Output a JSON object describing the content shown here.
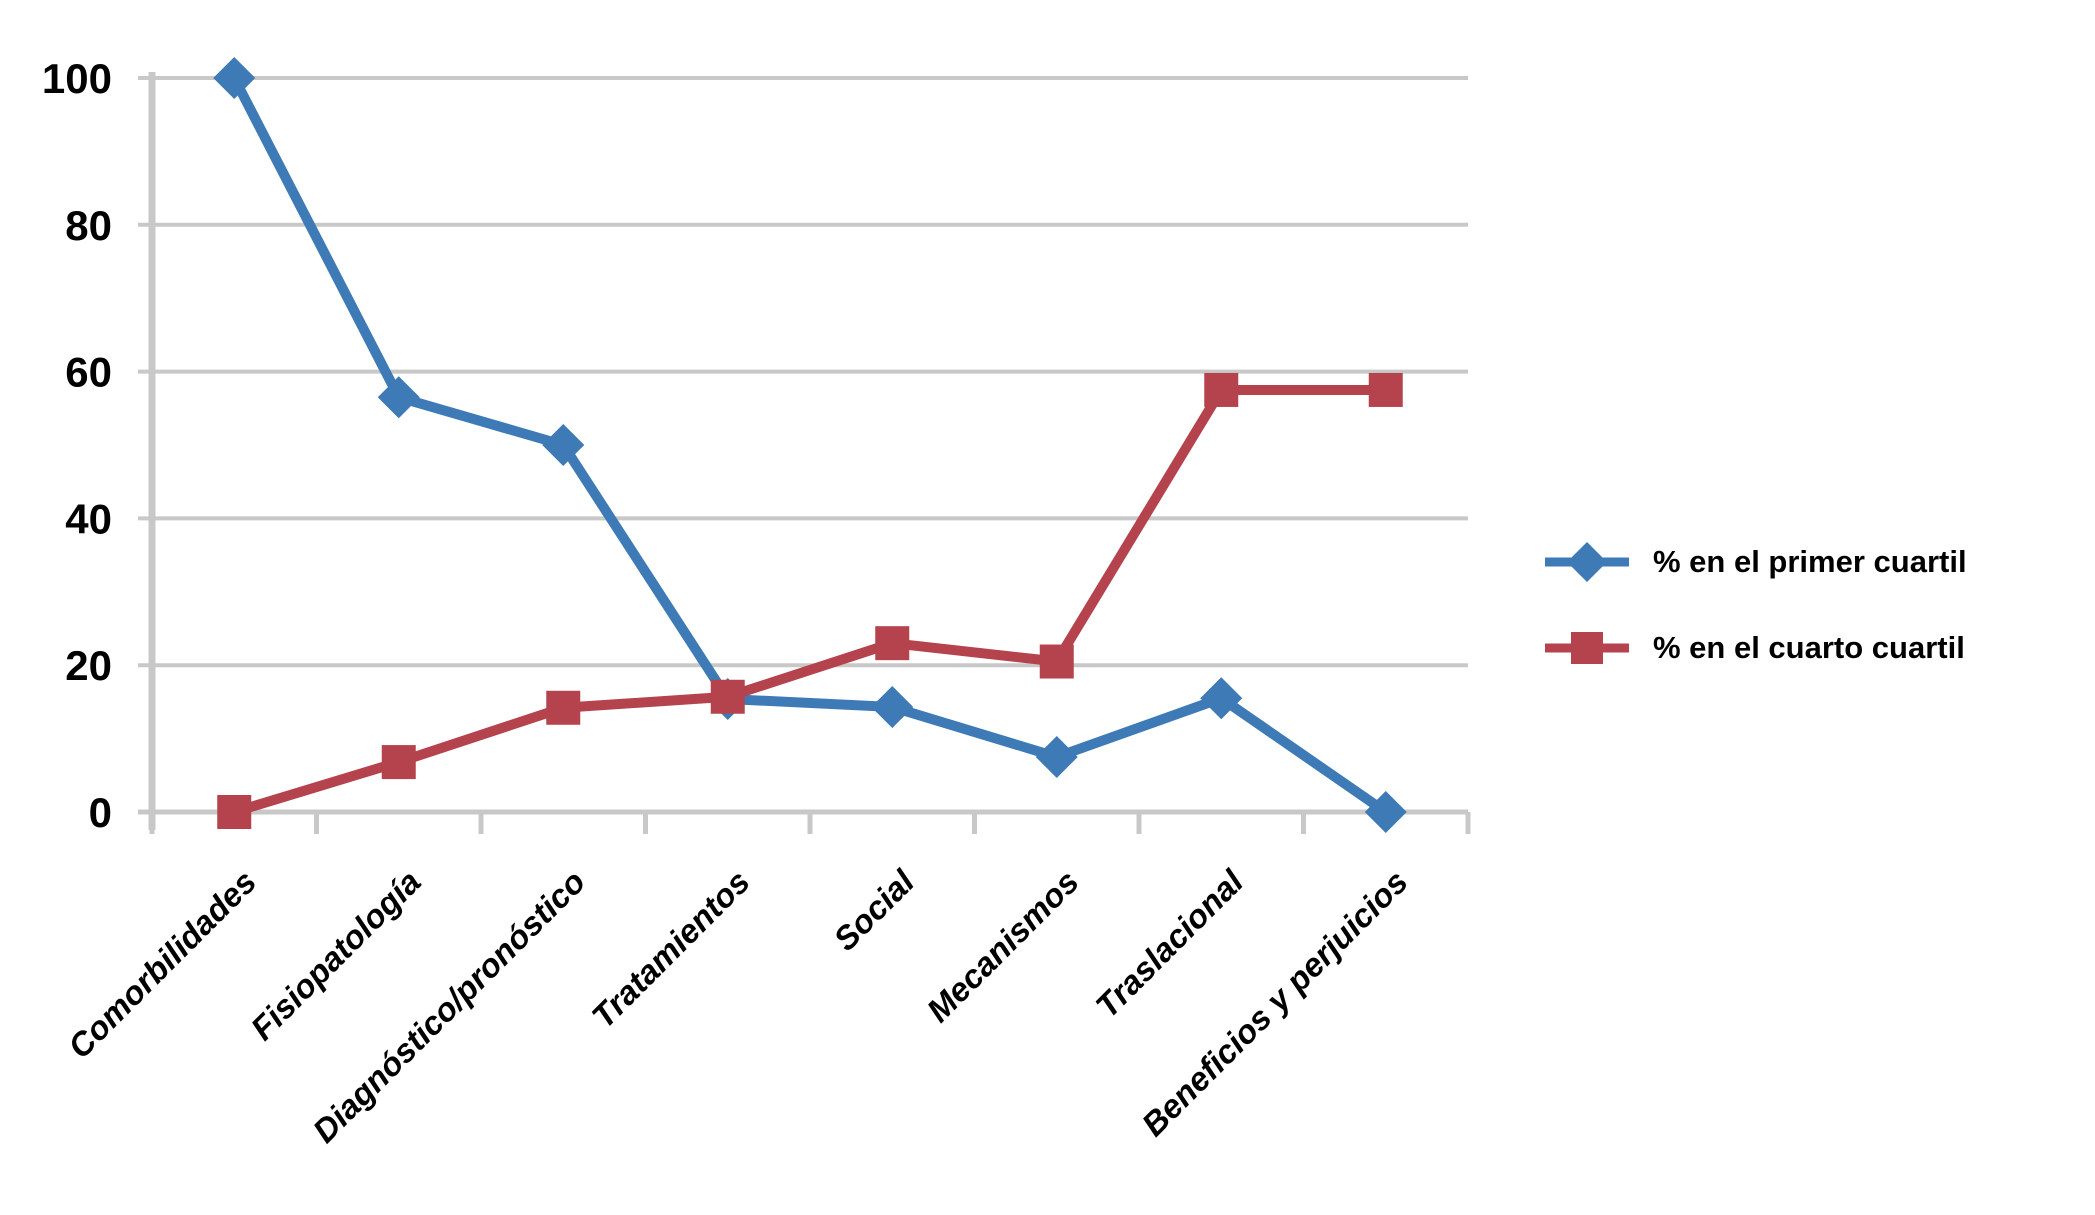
{
  "chart_data": {
    "type": "line",
    "title": "",
    "xlabel": "",
    "ylabel": "",
    "categories": [
      "Comorbilidades",
      "Fisiopatología",
      "Diagnóstico/pronóstico",
      "Tratamientos",
      "Social",
      "Mecanismos",
      "Traslacional",
      "Beneficios y perjuicios"
    ],
    "series": [
      {
        "name": "% en el primer cuartil",
        "color": "#3E7AB5",
        "marker": "diamond",
        "values": [
          100,
          56.5,
          50,
          15.4,
          14.3,
          7.5,
          15.5,
          0
        ]
      },
      {
        "name": "% en el cuarto cuartil",
        "color": "#B4434D",
        "marker": "square",
        "values": [
          0,
          6.8,
          14.2,
          15.7,
          23,
          20.5,
          57.5,
          57.5
        ]
      }
    ],
    "y_ticks": [
      0,
      20,
      40,
      60,
      80,
      100
    ],
    "ylim": [
      0,
      100
    ],
    "grid": true,
    "legend_position": "right",
    "gridline_color": "#C8C8C8",
    "text_color": "#000000",
    "background_color": "#FFFFFF"
  }
}
